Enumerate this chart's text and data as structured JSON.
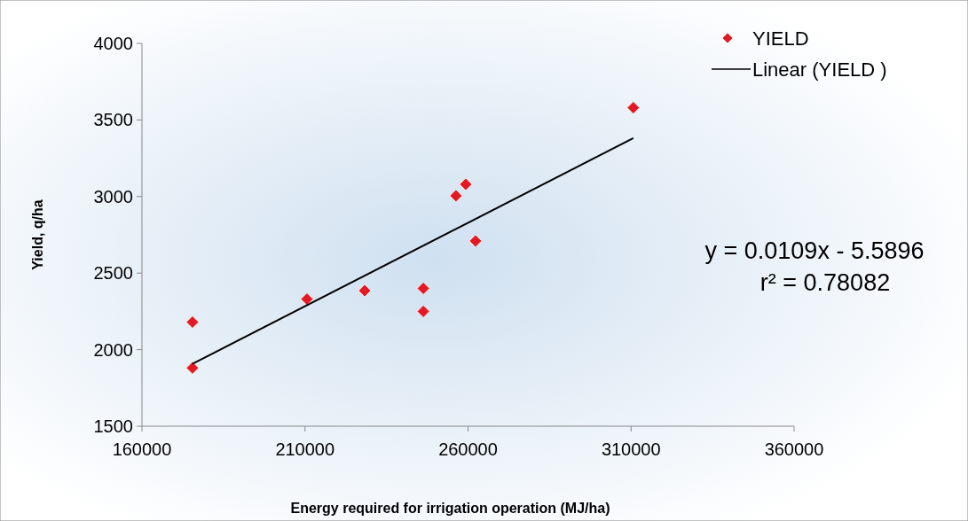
{
  "chart_data": {
    "type": "scatter",
    "xlabel": "Energy required for irrigation operation (MJ/ha)",
    "ylabel": "Yield, q/ha",
    "xlim": [
      160000,
      360000
    ],
    "xticks": [
      160000,
      210000,
      260000,
      310000,
      360000
    ],
    "ylim": [
      1500,
      4000
    ],
    "yticks": [
      1500,
      2000,
      2500,
      3000,
      3500,
      4000
    ],
    "grid": false,
    "legend": "top right",
    "series": [
      {
        "name": "YIELD",
        "marker": "diamond",
        "color": "#e31a23",
        "x": [
          175500,
          175500,
          210600,
          228300,
          246300,
          246300,
          256300,
          259300,
          262300,
          310700
        ],
        "values": [
          2180,
          1880,
          2330,
          2385,
          2400,
          2250,
          3005,
          3080,
          2710,
          3580
        ]
      },
      {
        "name": "Linear (YIELD )",
        "type": "line",
        "color": "#000000",
        "x": [
          175500,
          310700
        ],
        "values": [
          1907,
          3381
        ]
      }
    ],
    "annotations": [
      "y = 0.0109x - 5.5896",
      "r² = 0.78082"
    ]
  }
}
